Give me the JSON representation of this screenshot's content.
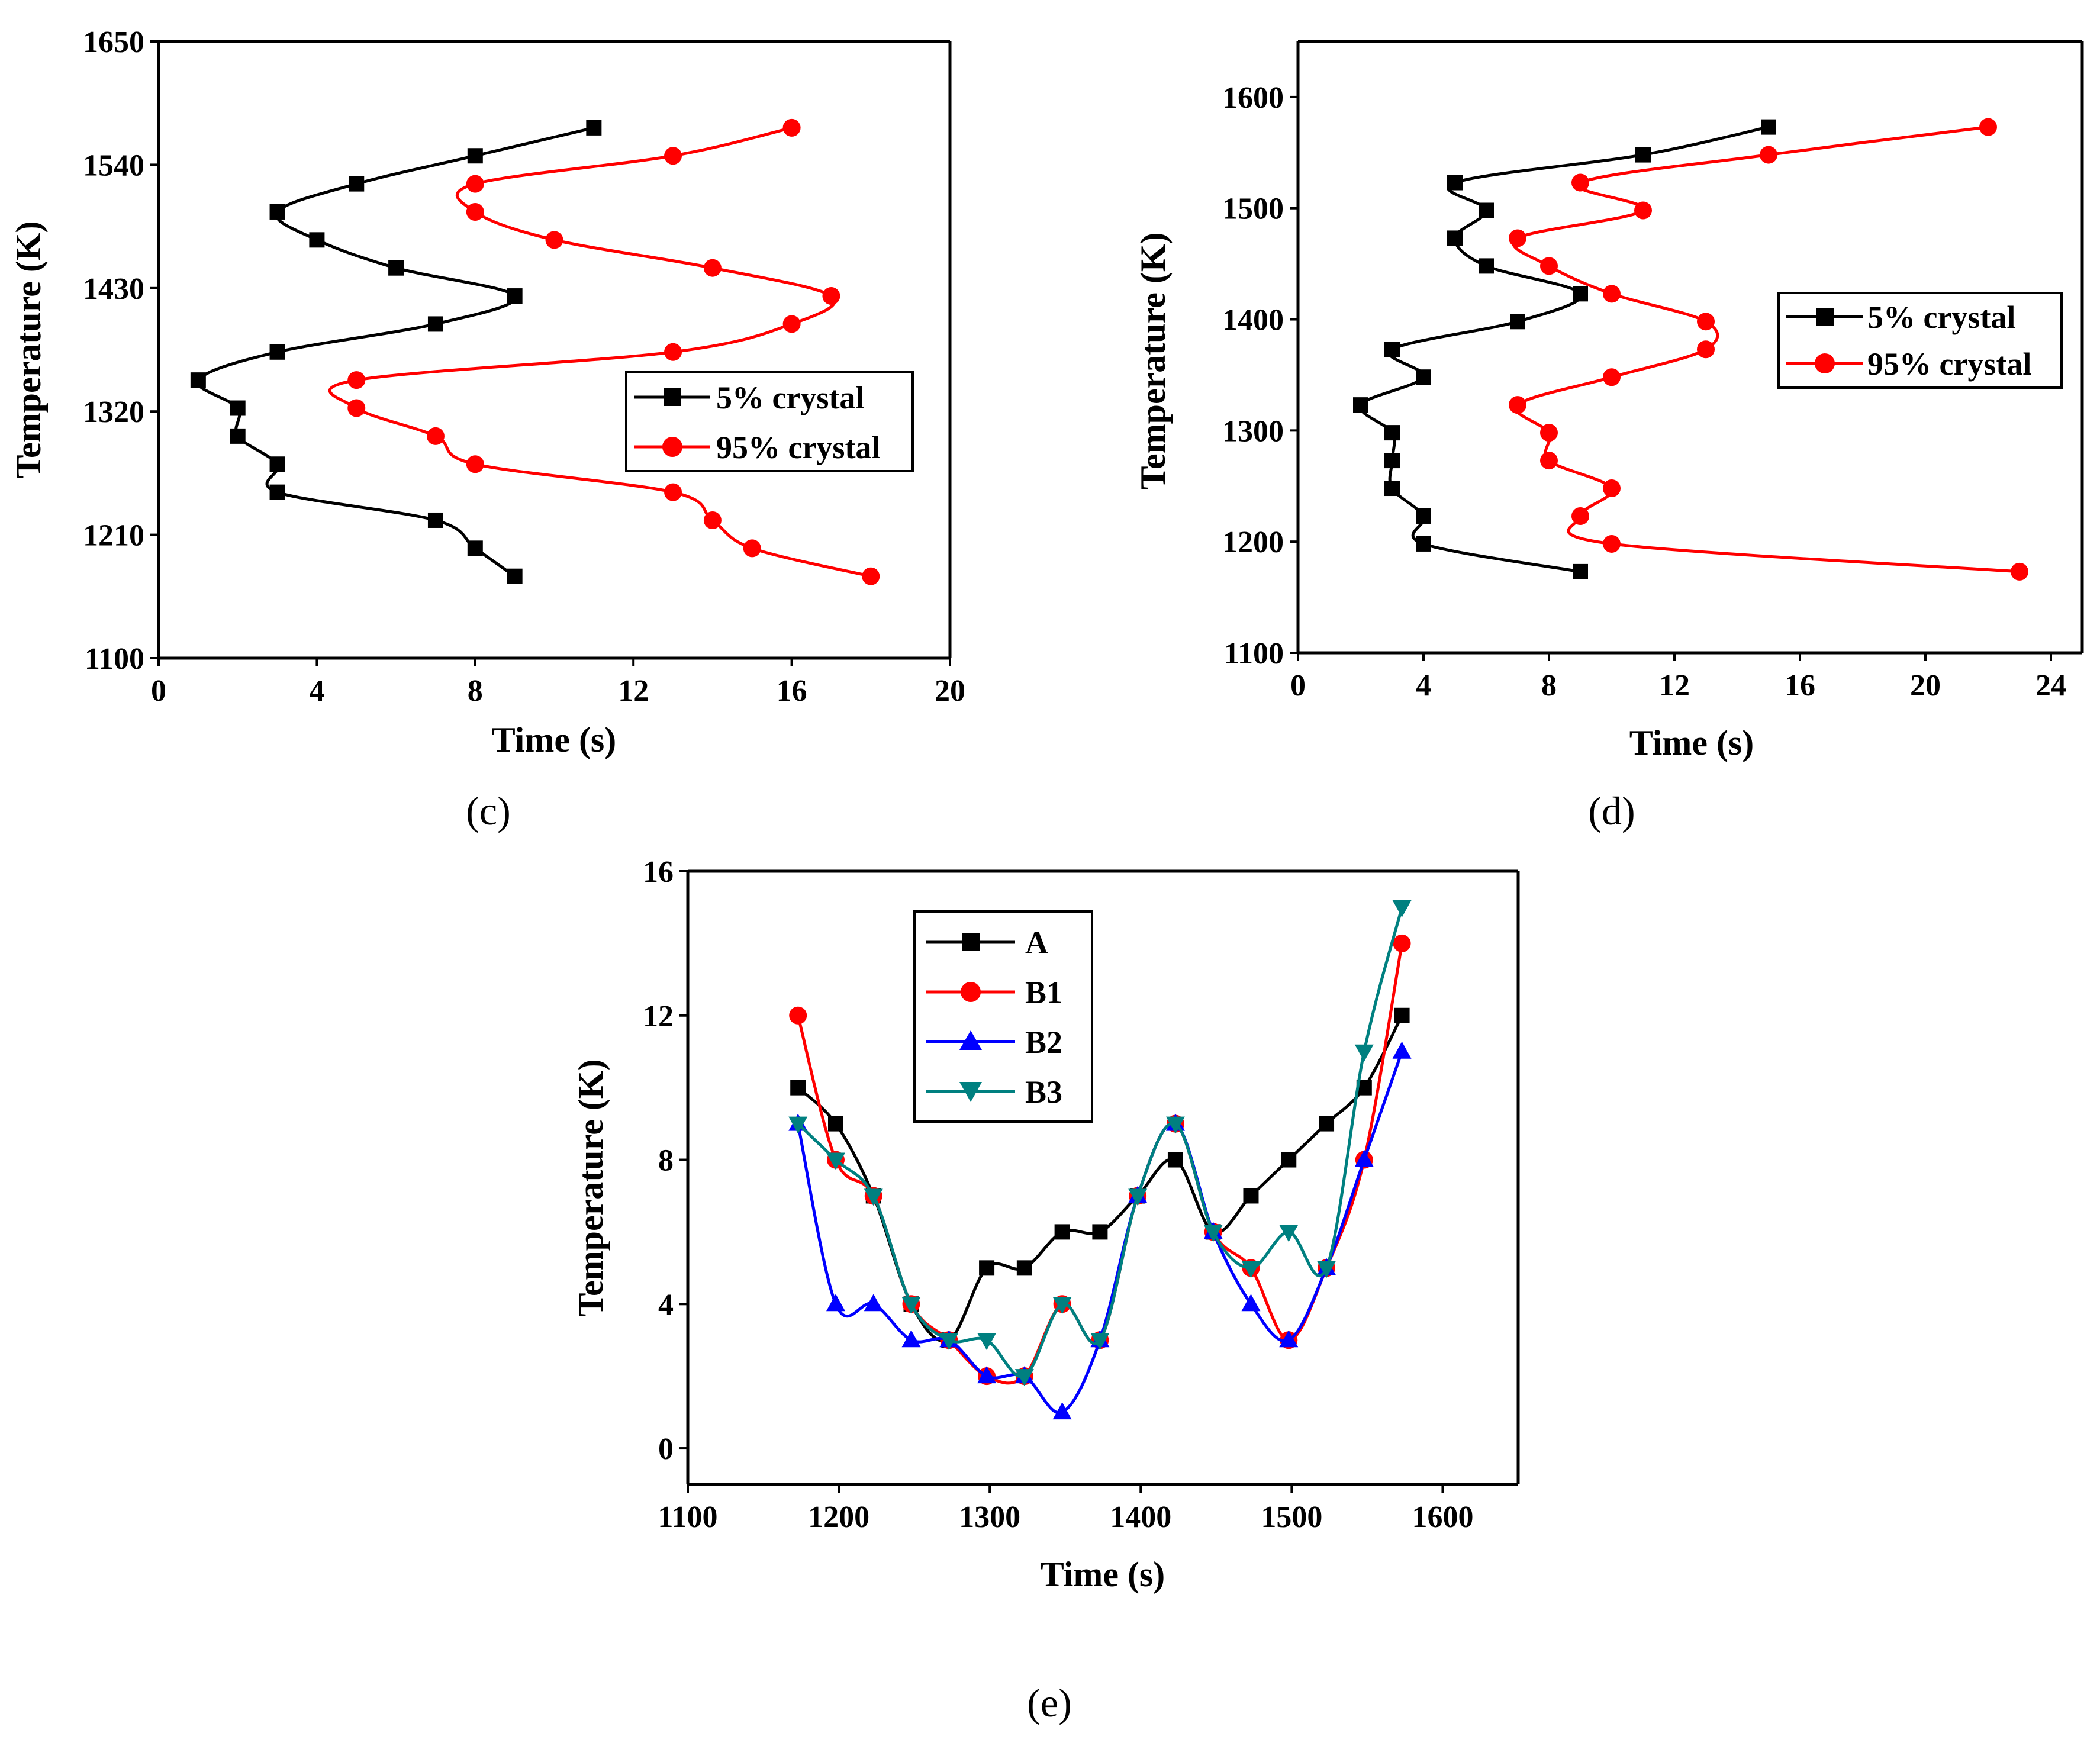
{
  "colors": {
    "black": "#000000",
    "red": "#ff0000",
    "blue": "#0000ff",
    "teal": "#008080"
  },
  "chart_data": [
    {
      "id": "c",
      "panel_label": "(c)",
      "type": "line",
      "title": "",
      "xlabel": "Time (s)",
      "ylabel": "Temperature (K)",
      "xlim": [
        0,
        20
      ],
      "ylim": [
        1100,
        1650
      ],
      "xticks": [
        0,
        4,
        8,
        12,
        16,
        20
      ],
      "yticks": [
        1100,
        1210,
        1320,
        1430,
        1540,
        1650
      ],
      "grid": false,
      "legend_position": "middle-right",
      "series": [
        {
          "name": "5% crystal",
          "color": "#000000",
          "marker": "square",
          "points": [
            [
              9,
              1173
            ],
            [
              8,
              1198
            ],
            [
              7,
              1223
            ],
            [
              3,
              1248
            ],
            [
              3,
              1273
            ],
            [
              2,
              1298
            ],
            [
              2,
              1323
            ],
            [
              1,
              1348
            ],
            [
              3,
              1373
            ],
            [
              7,
              1398
            ],
            [
              9,
              1423
            ],
            [
              6,
              1448
            ],
            [
              4,
              1473
            ],
            [
              3,
              1498
            ],
            [
              5,
              1523
            ],
            [
              8,
              1548
            ],
            [
              11,
              1573
            ]
          ]
        },
        {
          "name": "95% crystal",
          "color": "#ff0000",
          "marker": "circle",
          "points": [
            [
              18,
              1173
            ],
            [
              15,
              1198
            ],
            [
              14,
              1223
            ],
            [
              13,
              1248
            ],
            [
              8,
              1273
            ],
            [
              7,
              1298
            ],
            [
              5,
              1323
            ],
            [
              5,
              1348
            ],
            [
              13,
              1373
            ],
            [
              16,
              1398
            ],
            [
              17,
              1423
            ],
            [
              14,
              1448
            ],
            [
              10,
              1473
            ],
            [
              8,
              1498
            ],
            [
              8,
              1523
            ],
            [
              13,
              1548
            ],
            [
              16,
              1573
            ]
          ]
        }
      ]
    },
    {
      "id": "d",
      "panel_label": "(d)",
      "type": "line",
      "title": "",
      "xlabel": "Time (s)",
      "ylabel": "Temperature (K)",
      "xlim": [
        0,
        25
      ],
      "ylim": [
        1100,
        1650
      ],
      "xticks": [
        0,
        4,
        8,
        12,
        16,
        20,
        24
      ],
      "yticks": [
        1100,
        1200,
        1300,
        1400,
        1500,
        1600
      ],
      "grid": false,
      "legend_position": "middle-right",
      "series": [
        {
          "name": "5% crystal",
          "color": "#000000",
          "marker": "square",
          "points": [
            [
              9,
              1173
            ],
            [
              4,
              1198
            ],
            [
              4,
              1223
            ],
            [
              3,
              1248
            ],
            [
              3,
              1273
            ],
            [
              3,
              1298
            ],
            [
              2,
              1323
            ],
            [
              4,
              1348
            ],
            [
              3,
              1373
            ],
            [
              7,
              1398
            ],
            [
              9,
              1423
            ],
            [
              6,
              1448
            ],
            [
              5,
              1473
            ],
            [
              6,
              1498
            ],
            [
              5,
              1523
            ],
            [
              11,
              1548
            ],
            [
              15,
              1573
            ]
          ]
        },
        {
          "name": "95% crystal",
          "color": "#ff0000",
          "marker": "circle",
          "points": [
            [
              23,
              1173
            ],
            [
              10,
              1198
            ],
            [
              9,
              1223
            ],
            [
              10,
              1248
            ],
            [
              8,
              1273
            ],
            [
              8,
              1298
            ],
            [
              7,
              1323
            ],
            [
              10,
              1348
            ],
            [
              13,
              1373
            ],
            [
              13,
              1398
            ],
            [
              10,
              1423
            ],
            [
              8,
              1448
            ],
            [
              7,
              1473
            ],
            [
              11,
              1498
            ],
            [
              9,
              1523
            ],
            [
              15,
              1548
            ],
            [
              22,
              1573
            ]
          ]
        }
      ]
    },
    {
      "id": "e",
      "panel_label": "(e)",
      "type": "line",
      "title": "",
      "xlabel": "Time (s)",
      "ylabel": "Temperature (K)",
      "xlim": [
        1100,
        1650
      ],
      "ylim": [
        -1,
        16
      ],
      "xticks": [
        1100,
        1200,
        1300,
        1400,
        1500,
        1600
      ],
      "yticks": [
        0,
        4,
        8,
        12,
        16
      ],
      "grid": false,
      "legend_position": "top-left",
      "x": [
        1173,
        1198,
        1223,
        1248,
        1273,
        1298,
        1323,
        1348,
        1373,
        1398,
        1423,
        1448,
        1473,
        1498,
        1523,
        1548,
        1573
      ],
      "series": [
        {
          "name": "A",
          "color": "#000000",
          "marker": "square",
          "values": [
            10,
            9,
            7,
            4,
            3,
            5,
            5,
            6,
            6,
            7,
            8,
            6,
            7,
            8,
            9,
            10,
            12
          ]
        },
        {
          "name": "B1",
          "color": "#ff0000",
          "marker": "circle",
          "values": [
            12,
            8,
            7,
            4,
            3,
            2,
            2,
            4,
            3,
            7,
            9,
            6,
            5,
            3,
            5,
            8,
            14
          ]
        },
        {
          "name": "B2",
          "color": "#0000ff",
          "marker": "triangle-up",
          "values": [
            9,
            4,
            4,
            3,
            3,
            2,
            2,
            1,
            3,
            7,
            9,
            6,
            4,
            3,
            5,
            8,
            11
          ]
        },
        {
          "name": "B3",
          "color": "#008080",
          "marker": "triangle-down",
          "values": [
            9,
            8,
            7,
            4,
            3,
            3,
            2,
            4,
            3,
            7,
            9,
            6,
            5,
            6,
            5,
            11,
            15
          ]
        }
      ]
    }
  ]
}
